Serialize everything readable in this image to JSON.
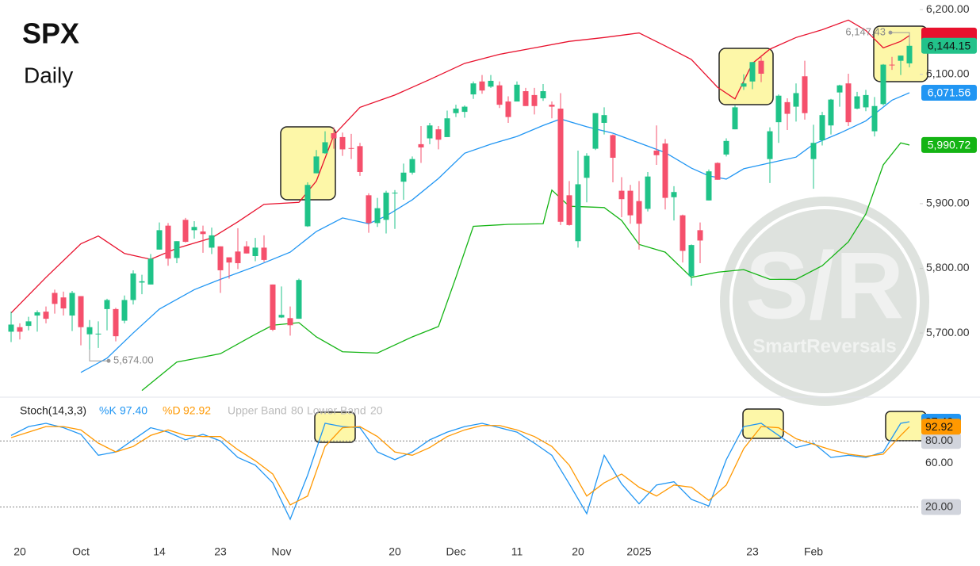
{
  "chart_data": [
    {
      "type": "candlestick",
      "title": "SPX",
      "subtitle": "Daily",
      "categories": [
        null,
        "20",
        null,
        null,
        null,
        null,
        null,
        null,
        "Oct",
        null,
        null,
        null,
        null,
        null,
        null,
        null,
        null,
        "14",
        null,
        null,
        null,
        null,
        null,
        null,
        "23",
        null,
        null,
        null,
        null,
        null,
        null,
        "Nov",
        null,
        null,
        null,
        null,
        null,
        null,
        null,
        null,
        null,
        null,
        null,
        null,
        "20",
        null,
        null,
        null,
        null,
        null,
        null,
        "Dec",
        null,
        null,
        null,
        null,
        null,
        null,
        "11",
        null,
        null,
        null,
        null,
        null,
        null,
        "20",
        null,
        null,
        null,
        null,
        null,
        null,
        "2025",
        null,
        null,
        null,
        null,
        null,
        null,
        null,
        null,
        null,
        null,
        null,
        null,
        "23",
        null,
        null,
        null,
        null,
        null,
        null,
        "Feb",
        null,
        null,
        null,
        null,
        null,
        null,
        null,
        null,
        null,
        null,
        null
      ],
      "open": [
        5702,
        5709,
        5711,
        5727,
        5733,
        5762,
        5755,
        5727,
        5757,
        5698,
        5698,
        5737,
        5737,
        5719,
        5751,
        5778,
        5775,
        5829,
        5866,
        5816,
        5875,
        5859,
        5857,
        5832,
        5834,
        5817,
        5826,
        5834,
        5819,
        5832,
        5775,
        5724,
        5723,
        5722,
        5865,
        5947,
        5978,
        6009,
        6003,
        5986,
        5989,
        5913,
        5870,
        5875,
        5917,
        5934,
        5948,
        5992,
        6001,
        6015,
        6003,
        6040,
        6042,
        6069,
        6089,
        6081,
        6083,
        6058,
        6058,
        6074,
        6068,
        6063,
        6053,
        6047,
        5913,
        5842,
        5940,
        5985,
        6025,
        6006,
        5920,
        5920,
        5904,
        5892,
        5982,
        5993,
        5910,
        5882,
        5788,
        5859,
        5905,
        5963,
        5976,
        6015,
        6081,
        6089,
        6121,
        5969,
        6026,
        6057,
        6050,
        6097,
        5969,
        5998,
        6021,
        6072,
        6086,
        6047,
        6049,
        6012,
        6054,
        6115,
        6121,
        6117
      ],
      "high": [
        5733,
        5715,
        5725,
        5735,
        5741,
        5767,
        5764,
        5765,
        5757,
        5720,
        5718,
        5753,
        5739,
        5758,
        5797,
        5790,
        5822,
        5871,
        5870,
        5842,
        5878,
        5873,
        5866,
        5863,
        5834,
        5817,
        5862,
        5842,
        5847,
        5851,
        5775,
        5772,
        5741,
        5784,
        5933,
        5983,
        6012,
        6018,
        6010,
        6008,
        5994,
        5916,
        5909,
        5920,
        5921,
        5962,
        5973,
        6020,
        6025,
        6020,
        6044,
        6053,
        6052,
        6089,
        6099,
        6099,
        6089,
        6066,
        6089,
        6079,
        6079,
        6085,
        6058,
        6071,
        5935,
        5982,
        5978,
        6040,
        6049,
        6007,
        5941,
        5929,
        5935,
        5949,
        6021,
        6000,
        5927,
        5883,
        5837,
        5871,
        5953,
        5964,
        6001,
        6052,
        6100,
        6119,
        6128,
        6018,
        6069,
        6063,
        6086,
        6121,
        6022,
        6042,
        6062,
        6084,
        6101,
        6073,
        6076,
        6065,
        6116,
        6127,
        6129,
        6147.43
      ],
      "low": [
        5686,
        5690,
        5704,
        5702,
        5715,
        5730,
        5727,
        5703,
        5681,
        5674,
        5677,
        5704,
        5687,
        5715,
        5744,
        5760,
        5775,
        5829,
        5804,
        5808,
        5840,
        5846,
        5824,
        5822,
        5762,
        5784,
        5799,
        5823,
        5811,
        5810,
        5703,
        5723,
        5696,
        5722,
        5864,
        5947,
        5977,
        5985,
        5974,
        5969,
        5943,
        5855,
        5864,
        5854,
        5861,
        5906,
        5945,
        5963,
        5992,
        5984,
        6003,
        6034,
        6033,
        6062,
        6070,
        6079,
        6048,
        6025,
        6058,
        6051,
        6038,
        6059,
        6032,
        5867,
        5866,
        5832,
        5902,
        5983,
        6007,
        5933,
        5879,
        5869,
        5829,
        5888,
        5960,
        5891,
        5874,
        5809,
        5773,
        5808,
        5905,
        5937,
        5973,
        6015,
        6076,
        6077,
        6088,
        5932,
        5994,
        6014,
        6027,
        6030,
        5923,
        5990,
        6007,
        6050,
        6020,
        6046,
        6043,
        6004,
        6052,
        6107,
        6099,
        6111
      ],
      "close": [
        5713,
        5702,
        5718,
        5732,
        5722,
        5745,
        5738,
        5762,
        5709,
        5709,
        5699,
        5751,
        5695,
        5751,
        5792,
        5780,
        5815,
        5859,
        5815,
        5842,
        5841,
        5864,
        5853,
        5851,
        5797,
        5809,
        5808,
        5823,
        5832,
        5813,
        5705,
        5728,
        5712,
        5782,
        5929,
        5973,
        5995,
        6001,
        5984,
        5985,
        5949,
        5870,
        5893,
        5917,
        5917,
        5948,
        5969,
        5987,
        6021,
        5999,
        6032,
        6047,
        6050,
        6086,
        6075,
        6090,
        6053,
        6034,
        6084,
        6051,
        6051,
        6074,
        6050,
        5872,
        5867,
        5930,
        5974,
        6040,
        6037,
        5971,
        5907,
        5882,
        5869,
        5942,
        5975,
        5909,
        5918,
        5827,
        5836,
        5843,
        5950,
        5937,
        5997,
        6049,
        6086,
        6119,
        6101,
        6012,
        6067,
        6039,
        6071,
        6040,
        5994,
        6037,
        6061,
        6083,
        6026,
        6066,
        6068,
        6051,
        6115,
        6114,
        6129,
        6144.15
      ],
      "up_color": "#1fc388",
      "down_color": "#f5506c",
      "close_tag_color": "#22c28a",
      "last_label": "6,144.15",
      "ylim": [
        5602,
        6215
      ],
      "yticks": [
        {
          "value": 6200,
          "label": "6,200.00"
        },
        {
          "value": 6100,
          "label": "6,100.00"
        },
        {
          "value": 5900,
          "label": "5,900.00"
        },
        {
          "value": 5800,
          "label": "5,800.00"
        },
        {
          "value": 5700,
          "label": "5,700.00"
        }
      ],
      "lines": [
        {
          "color": "#e8112d",
          "x": [
            0,
            4,
            8,
            10,
            13,
            16,
            19,
            23,
            26,
            29,
            33,
            35,
            37,
            40,
            44,
            48,
            52,
            56,
            60,
            64,
            68,
            72,
            75,
            78,
            81,
            83,
            85,
            87,
            90,
            93,
            96,
            98,
            100,
            102,
            103
          ],
          "values": [
            5731,
            5786,
            5838,
            5850,
            5823,
            5814,
            5831,
            5847,
            5872,
            5899,
            5902,
            5935,
            6006,
            6049,
            6068,
            6092,
            6117,
            6131,
            6141,
            6151,
            6157,
            6164,
            6144,
            6123,
            6080,
            6062,
            6117,
            6139,
            6157,
            6169,
            6184,
            6168,
            6141,
            6151,
            6160
          ]
        },
        {
          "color": "#2196f3",
          "x": [
            8,
            11,
            14,
            17,
            21,
            24,
            28,
            32,
            35,
            38,
            41,
            43,
            46,
            49,
            52,
            55,
            58,
            61,
            63,
            66,
            69,
            72,
            75,
            78,
            80,
            82,
            84,
            87,
            90,
            92,
            95,
            98,
            101,
            103
          ],
          "values": [
            5639,
            5661,
            5700,
            5737,
            5767,
            5783,
            5803,
            5825,
            5857,
            5878,
            5869,
            5881,
            5906,
            5939,
            5978,
            5992,
            6004,
            6021,
            6031,
            6019,
            6009,
            5994,
            5979,
            5955,
            5943,
            5938,
            5954,
            5963,
            5972,
            5992,
            6009,
            6028,
            6060,
            6071.56
          ],
          "last_label": "6,071.56"
        },
        {
          "color": "#14b414",
          "x": [
            15,
            19,
            24,
            28,
            30,
            33,
            35,
            38,
            42,
            46,
            49,
            51,
            53,
            57,
            61,
            62,
            64,
            68,
            70,
            72,
            75,
            78,
            81,
            84,
            87,
            90,
            93,
            96,
            98,
            100,
            102,
            103
          ],
          "values": [
            5611,
            5655,
            5668,
            5698,
            5712,
            5716,
            5694,
            5671,
            5669,
            5694,
            5710,
            5786,
            5865,
            5868,
            5869,
            5921,
            5896,
            5894,
            5874,
            5837,
            5825,
            5786,
            5794,
            5798,
            5783,
            5783,
            5804,
            5841,
            5884,
            5960,
            5994,
            5990.72
          ],
          "last_label": "5,990.72"
        }
      ],
      "annotations": [
        {
          "x": 103,
          "value": 6147.43,
          "label": "6,147.43"
        },
        {
          "x": 9,
          "value": 5674,
          "label": "5,674.00"
        }
      ],
      "watermark": {
        "mark": "S/R",
        "text": "SmartReversals"
      }
    },
    {
      "type": "line",
      "title": "Stoch(14,3,3)",
      "ylim": [
        -9,
        119
      ],
      "yticks": [
        {
          "value": 80,
          "label": "80.00"
        },
        {
          "value": 60,
          "label": "60.00"
        },
        {
          "value": 20,
          "label": "20.00"
        }
      ],
      "bands": [
        {
          "name": "Upper Band",
          "value": 80
        },
        {
          "name": "Lower Band",
          "value": 20
        }
      ],
      "series": [
        {
          "name": "%K",
          "color": "#2196f3",
          "value_label": "97.40",
          "x": [
            0,
            2,
            4,
            6,
            8,
            10,
            12,
            14,
            16,
            18,
            20,
            22,
            24,
            26,
            28,
            30,
            32,
            34,
            36,
            38,
            40,
            42,
            44,
            46,
            48,
            50,
            52,
            54,
            56,
            58,
            60,
            62,
            64,
            66,
            68,
            70,
            72,
            74,
            76,
            78,
            80,
            82,
            84,
            86,
            88,
            90,
            92,
            94,
            96,
            98,
            100,
            102,
            103
          ],
          "values": [
            85,
            93,
            96,
            92,
            86,
            67,
            70,
            81,
            92,
            88,
            81,
            86,
            80,
            65,
            58,
            42,
            9,
            49,
            96,
            93,
            92,
            70,
            63,
            70,
            81,
            88,
            93,
            96,
            92,
            88,
            78,
            67,
            41,
            14,
            67,
            41,
            23,
            40,
            43,
            27,
            21,
            63,
            93,
            96,
            85,
            74,
            78,
            65,
            67,
            65,
            70,
            96,
            97.4
          ]
        },
        {
          "name": "%D",
          "color": "#ff9800",
          "value_label": "92.92",
          "x": [
            0,
            2,
            4,
            6,
            8,
            10,
            12,
            14,
            16,
            18,
            20,
            22,
            24,
            26,
            28,
            30,
            32,
            34,
            36,
            38,
            40,
            42,
            44,
            46,
            48,
            50,
            52,
            54,
            56,
            58,
            60,
            62,
            64,
            66,
            68,
            70,
            72,
            74,
            76,
            78,
            80,
            82,
            84,
            86,
            88,
            90,
            92,
            94,
            96,
            98,
            100,
            102,
            103
          ],
          "values": [
            83,
            88,
            93,
            93,
            90,
            78,
            70,
            75,
            85,
            90,
            85,
            84,
            84,
            72,
            62,
            50,
            22,
            30,
            75,
            92,
            93,
            84,
            70,
            67,
            74,
            84,
            90,
            94,
            94,
            90,
            84,
            75,
            58,
            30,
            42,
            50,
            38,
            30,
            40,
            38,
            26,
            40,
            73,
            93,
            92,
            82,
            77,
            72,
            68,
            66,
            68,
            85,
            92.92
          ]
        }
      ]
    }
  ]
}
